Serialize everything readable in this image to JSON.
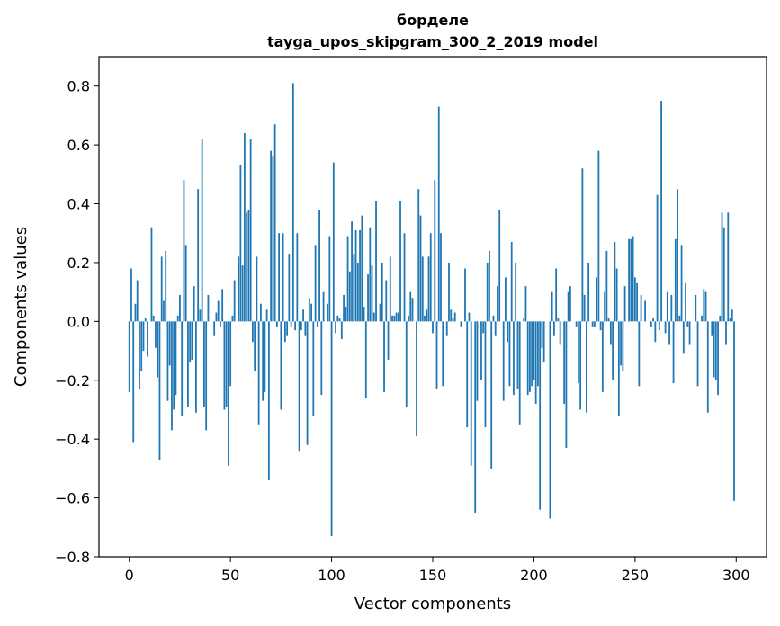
{
  "chart_data": {
    "type": "bar",
    "title": "борделе",
    "subtitle": "tayga_upos_skipgram_300_2_2019 model",
    "xlabel": "Vector components",
    "ylabel": "Components values",
    "xlim": [
      -15,
      315
    ],
    "ylim": [
      -0.8,
      0.9
    ],
    "xticks": [
      0,
      50,
      100,
      150,
      200,
      250,
      300
    ],
    "xtick_labels": [
      "0",
      "50",
      "100",
      "150",
      "200",
      "250",
      "300"
    ],
    "yticks": [
      -0.8,
      -0.6,
      -0.4,
      -0.2,
      0.0,
      0.2,
      0.4,
      0.6,
      0.8
    ],
    "ytick_labels": [
      "−0.8",
      "−0.6",
      "−0.4",
      "−0.2",
      "0.0",
      "0.2",
      "0.4",
      "0.6",
      "0.8"
    ],
    "grid": false,
    "bar_color": "#1f77b4",
    "values": [
      -0.24,
      0.18,
      -0.41,
      0.06,
      0.14,
      -0.23,
      -0.17,
      -0.1,
      0.01,
      -0.12,
      0.0,
      0.32,
      0.02,
      -0.09,
      -0.19,
      -0.47,
      0.22,
      0.07,
      0.24,
      -0.27,
      -0.15,
      -0.37,
      -0.3,
      -0.25,
      0.02,
      0.09,
      -0.32,
      0.48,
      0.26,
      -0.29,
      -0.14,
      -0.13,
      0.12,
      -0.31,
      0.45,
      0.04,
      0.62,
      -0.29,
      -0.37,
      0.09,
      0.0,
      0.0,
      -0.05,
      0.03,
      0.07,
      -0.02,
      0.11,
      -0.3,
      -0.29,
      -0.49,
      -0.22,
      0.02,
      0.14,
      0.0,
      0.22,
      0.53,
      0.19,
      0.64,
      0.37,
      0.38,
      0.62,
      -0.07,
      -0.17,
      0.22,
      -0.35,
      0.06,
      -0.27,
      -0.24,
      0.04,
      -0.54,
      0.58,
      0.56,
      0.67,
      -0.02,
      0.3,
      -0.3,
      0.3,
      -0.07,
      -0.05,
      0.23,
      -0.02,
      0.81,
      -0.03,
      0.3,
      -0.44,
      -0.03,
      0.04,
      -0.05,
      -0.42,
      0.08,
      0.06,
      -0.32,
      0.26,
      -0.02,
      0.38,
      -0.25,
      0.1,
      0.0,
      0.06,
      0.29,
      -0.73,
      0.54,
      -0.04,
      0.02,
      0.01,
      -0.06,
      0.09,
      0.05,
      0.29,
      0.17,
      0.34,
      0.23,
      0.31,
      0.2,
      0.31,
      0.36,
      0.05,
      -0.26,
      0.16,
      0.32,
      0.19,
      0.03,
      0.41,
      0.0,
      0.06,
      0.2,
      -0.24,
      0.14,
      -0.13,
      0.22,
      0.02,
      0.02,
      0.03,
      0.03,
      0.41,
      0.0,
      0.3,
      -0.29,
      0.02,
      0.1,
      0.08,
      0.0,
      -0.39,
      0.45,
      0.36,
      0.22,
      0.02,
      0.04,
      0.22,
      0.3,
      -0.04,
      0.48,
      -0.23,
      0.73,
      0.3,
      -0.22,
      0.0,
      -0.05,
      0.2,
      0.04,
      0.01,
      0.03,
      0.0,
      0.0,
      -0.02,
      0.0,
      0.18,
      -0.36,
      0.03,
      -0.49,
      0.0,
      -0.65,
      -0.27,
      0.0,
      -0.2,
      -0.04,
      -0.36,
      0.2,
      0.24,
      -0.5,
      0.02,
      -0.05,
      0.12,
      0.38,
      0.0,
      -0.27,
      0.15,
      -0.07,
      -0.22,
      0.27,
      -0.25,
      0.2,
      -0.23,
      -0.35,
      0.0,
      0.01,
      0.12,
      -0.25,
      -0.24,
      -0.22,
      -0.2,
      -0.28,
      -0.22,
      -0.64,
      -0.09,
      -0.14,
      0.0,
      0.0,
      -0.67,
      0.1,
      -0.05,
      0.18,
      0.01,
      -0.08,
      0.0,
      -0.28,
      -0.43,
      0.1,
      0.12,
      0.0,
      0.0,
      -0.02,
      -0.21,
      -0.3,
      0.52,
      0.09,
      -0.31,
      0.2,
      0.0,
      -0.02,
      -0.02,
      0.15,
      0.58,
      -0.03,
      -0.24,
      0.1,
      0.24,
      0.01,
      -0.08,
      -0.2,
      0.27,
      0.18,
      -0.32,
      -0.15,
      -0.17,
      0.12,
      0.0,
      0.28,
      0.28,
      0.29,
      0.15,
      0.13,
      -0.22,
      0.09,
      0.0,
      0.07,
      0.0,
      0.0,
      -0.02,
      0.01,
      -0.07,
      0.43,
      -0.03,
      0.75,
      0.0,
      -0.04,
      0.1,
      -0.08,
      0.09,
      -0.21,
      0.28,
      0.45,
      0.02,
      0.26,
      -0.11,
      0.13,
      -0.02,
      -0.08,
      0.0,
      0.0,
      0.09,
      -0.22,
      0.0,
      0.02,
      0.11,
      0.1,
      -0.31,
      0.0,
      -0.05,
      -0.19,
      -0.2,
      -0.25,
      0.02,
      0.37,
      0.32,
      -0.08,
      0.37,
      0.01,
      0.04,
      -0.61
    ]
  }
}
